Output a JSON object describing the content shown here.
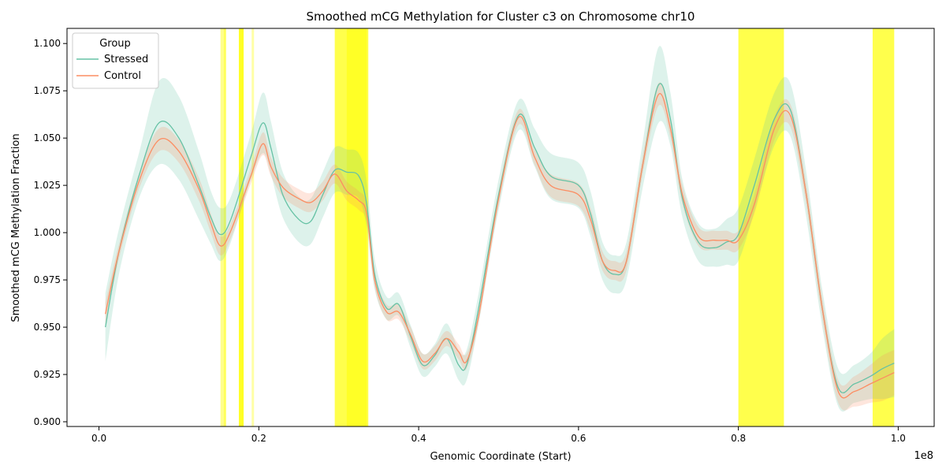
{
  "chart_data": {
    "type": "line",
    "title": "Smoothed mCG Methylation for Cluster c3 on Chromosome chr10",
    "xlabel": "Genomic Coordinate (Start)",
    "ylabel": "Smoothed mCG Methylation Fraction",
    "x_offset_label": "1e8",
    "xlim": [
      -0.04,
      1.045
    ],
    "ylim": [
      0.8975,
      1.108
    ],
    "x_ticks": [
      0.0,
      0.2,
      0.4,
      0.6,
      0.8,
      1.0
    ],
    "x_tick_labels": [
      "0.0",
      "0.2",
      "0.4",
      "0.6",
      "0.8",
      "1.0"
    ],
    "y_ticks": [
      0.9,
      0.925,
      0.95,
      0.975,
      1.0,
      1.025,
      1.05,
      1.075,
      1.1
    ],
    "y_tick_labels": [
      "0.900",
      "0.925",
      "0.950",
      "0.975",
      "1.000",
      "1.025",
      "1.050",
      "1.075",
      "1.100"
    ],
    "grid": false,
    "legend": {
      "title": "Group",
      "location": "top-left"
    },
    "highlight_color": "#ffff00",
    "highlight_regions": [
      {
        "start": 0.152,
        "end": 0.156,
        "opacity": 0.45
      },
      {
        "start": 0.156,
        "end": 0.159,
        "opacity": 0.65
      },
      {
        "start": 0.175,
        "end": 0.181,
        "opacity": 0.85
      },
      {
        "start": 0.191,
        "end": 0.194,
        "opacity": 0.35
      },
      {
        "start": 0.295,
        "end": 0.337,
        "opacity": 0.7
      },
      {
        "start": 0.31,
        "end": 0.335,
        "opacity": 0.5
      },
      {
        "start": 0.8,
        "end": 0.857,
        "opacity": 0.7
      },
      {
        "start": 0.968,
        "end": 0.995,
        "opacity": 0.7
      }
    ],
    "x": [
      0.008,
      0.025,
      0.05,
      0.075,
      0.1,
      0.125,
      0.14,
      0.152,
      0.165,
      0.19,
      0.205,
      0.215,
      0.23,
      0.25,
      0.265,
      0.28,
      0.295,
      0.31,
      0.325,
      0.335,
      0.345,
      0.36,
      0.375,
      0.39,
      0.405,
      0.42,
      0.435,
      0.45,
      0.46,
      0.475,
      0.5,
      0.525,
      0.545,
      0.565,
      0.6,
      0.615,
      0.63,
      0.645,
      0.66,
      0.68,
      0.7,
      0.715,
      0.73,
      0.75,
      0.77,
      0.785,
      0.8,
      0.82,
      0.845,
      0.865,
      0.885,
      0.905,
      0.925,
      0.945,
      0.965,
      0.98,
      0.995
    ],
    "series": [
      {
        "name": "Stressed",
        "color": "#66c2a5",
        "band_opacity": 0.22,
        "values": [
          0.95,
          0.99,
          1.03,
          1.058,
          1.05,
          1.025,
          1.008,
          0.999,
          1.007,
          1.04,
          1.058,
          1.045,
          1.02,
          1.007,
          1.006,
          1.02,
          1.033,
          1.032,
          1.03,
          1.015,
          0.978,
          0.96,
          0.962,
          0.945,
          0.93,
          0.935,
          0.944,
          0.93,
          0.93,
          0.96,
          1.02,
          1.062,
          1.045,
          1.03,
          1.025,
          1.01,
          0.985,
          0.978,
          0.985,
          1.035,
          1.078,
          1.06,
          1.018,
          0.995,
          0.992,
          0.995,
          0.999,
          1.025,
          1.06,
          1.065,
          1.02,
          0.96,
          0.918,
          0.92,
          0.924,
          0.928,
          0.931
        ],
        "band": [
          0.018,
          0.012,
          0.012,
          0.022,
          0.022,
          0.018,
          0.014,
          0.014,
          0.012,
          0.012,
          0.016,
          0.014,
          0.012,
          0.012,
          0.012,
          0.012,
          0.012,
          0.012,
          0.012,
          0.012,
          0.008,
          0.006,
          0.006,
          0.006,
          0.006,
          0.006,
          0.008,
          0.008,
          0.008,
          0.008,
          0.008,
          0.008,
          0.01,
          0.012,
          0.012,
          0.012,
          0.01,
          0.01,
          0.01,
          0.012,
          0.02,
          0.014,
          0.01,
          0.01,
          0.01,
          0.012,
          0.014,
          0.014,
          0.014,
          0.014,
          0.012,
          0.01,
          0.01,
          0.01,
          0.012,
          0.016,
          0.018
        ]
      },
      {
        "name": "Control",
        "color": "#fc8d62",
        "band_opacity": 0.22,
        "values": [
          0.957,
          0.99,
          1.027,
          1.049,
          1.043,
          1.023,
          1.005,
          0.993,
          1.001,
          1.03,
          1.047,
          1.035,
          1.024,
          1.018,
          1.016,
          1.022,
          1.031,
          1.022,
          1.017,
          1.01,
          0.975,
          0.958,
          0.958,
          0.946,
          0.932,
          0.936,
          0.944,
          0.937,
          0.932,
          0.956,
          1.018,
          1.061,
          1.04,
          1.025,
          1.02,
          1.007,
          0.985,
          0.98,
          0.985,
          1.035,
          1.073,
          1.055,
          1.02,
          0.998,
          0.996,
          0.996,
          0.996,
          1.015,
          1.055,
          1.062,
          1.02,
          0.96,
          0.916,
          0.916,
          0.92,
          0.923,
          0.926
        ],
        "band": [
          0.006,
          0.004,
          0.004,
          0.006,
          0.006,
          0.006,
          0.005,
          0.005,
          0.004,
          0.004,
          0.006,
          0.005,
          0.005,
          0.005,
          0.005,
          0.005,
          0.005,
          0.005,
          0.005,
          0.005,
          0.004,
          0.004,
          0.004,
          0.004,
          0.004,
          0.004,
          0.004,
          0.004,
          0.004,
          0.004,
          0.004,
          0.004,
          0.004,
          0.006,
          0.006,
          0.006,
          0.005,
          0.005,
          0.005,
          0.005,
          0.006,
          0.005,
          0.005,
          0.005,
          0.005,
          0.005,
          0.005,
          0.005,
          0.006,
          0.006,
          0.006,
          0.006,
          0.006,
          0.008,
          0.01,
          0.012,
          0.012
        ]
      }
    ]
  }
}
